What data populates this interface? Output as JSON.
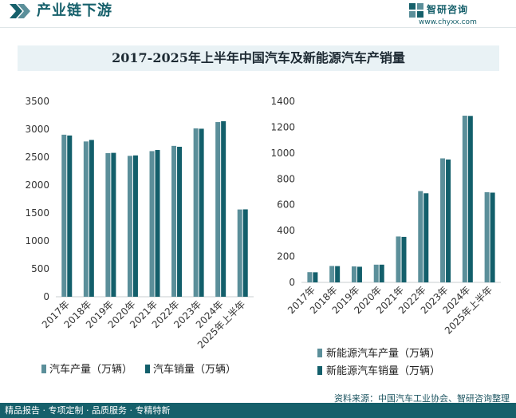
{
  "header": {
    "title": "产业链下游",
    "logo_name": "智研咨询",
    "logo_url": "www.chyxx.com"
  },
  "chart_title": "2017-2025年上半年中国汽车及新能源汽车产销量",
  "source": "资料来源：中国汽车工业协会、智研咨询整理",
  "footer_text": "精品报告 · 专项定制 · 品质服务 · 专精特新",
  "colors": {
    "accent": "#16606b",
    "production": "#5b8f9a",
    "sales": "#135f6b"
  },
  "chart_data": [
    {
      "type": "bar",
      "categories": [
        "2017年",
        "2018年",
        "2019年",
        "2020年",
        "2021年",
        "2022年",
        "2023年",
        "2024年",
        "2025年上半年"
      ],
      "series": [
        {
          "name": "汽车产量（万辆）",
          "values": [
            2902,
            2781,
            2572,
            2523,
            2608,
            2702,
            3016,
            3128,
            1563
          ]
        },
        {
          "name": "汽车销量（万辆）",
          "values": [
            2888,
            2808,
            2577,
            2531,
            2628,
            2686,
            3009,
            3144,
            1565
          ]
        }
      ],
      "ylim": [
        0,
        3500
      ],
      "yticks": [
        0,
        500,
        1000,
        1500,
        2000,
        2500,
        3000,
        3500
      ],
      "grid": false,
      "legend_position": "bottom"
    },
    {
      "type": "bar",
      "categories": [
        "2017年",
        "2018年",
        "2019年",
        "2020年",
        "2021年",
        "2022年",
        "2023年",
        "2024年",
        "2025年上半年"
      ],
      "series": [
        {
          "name": "新能源汽车产量（万辆）",
          "values": [
            79,
            127,
            124,
            137,
            355,
            706,
            959,
            1289,
            697
          ]
        },
        {
          "name": "新能源汽车销量（万辆）",
          "values": [
            78,
            126,
            121,
            137,
            352,
            689,
            950,
            1287,
            694
          ]
        }
      ],
      "ylim": [
        0,
        1400
      ],
      "yticks": [
        0,
        200,
        400,
        600,
        800,
        1000,
        1200,
        1400
      ],
      "grid": false,
      "legend_position": "bottom"
    }
  ]
}
